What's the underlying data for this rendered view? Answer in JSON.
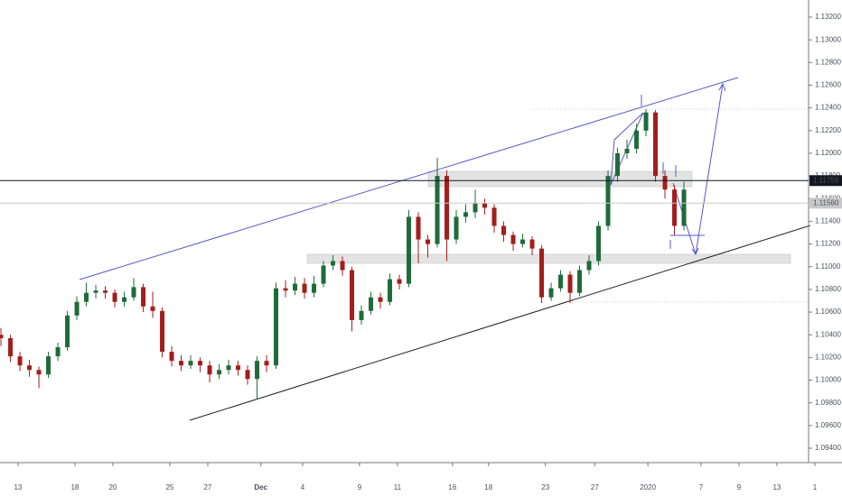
{
  "chart_data": {
    "type": "candlestick",
    "x": [
      -0.9,
      -0.4,
      0.1,
      0.6,
      1.1,
      1.6,
      2.1,
      2.6,
      3.1,
      3.6,
      4.1,
      4.6,
      5.1,
      5.6,
      6.1,
      6.6,
      7.1,
      7.6,
      8.1,
      8.6,
      9.1,
      9.6,
      10.1,
      10.6,
      11.1,
      11.6,
      12.1,
      12.6,
      13.1,
      13.6,
      14.1,
      14.6,
      15.1,
      15.6,
      16.1,
      16.6,
      17.1,
      17.6,
      18.1,
      18.6,
      19.1,
      19.6,
      20.1,
      20.6,
      21.1,
      21.6,
      22.1,
      22.6,
      23.1,
      23.6,
      24.1,
      24.6,
      25.1,
      25.6,
      26.1,
      26.6,
      27.1,
      27.6,
      28.1,
      28.6,
      29.1,
      29.6,
      30.1,
      30.6,
      31.1,
      31.6,
      32.1,
      32.6,
      33.1,
      33.6,
      34.1,
      34.6,
      35.1
    ],
    "open": [
      1.104,
      1.1037,
      1.1021,
      1.1013,
      1.1009,
      1.1005,
      1.1021,
      1.1029,
      1.1057,
      1.1069,
      1.1077,
      1.1079,
      1.1077,
      1.1069,
      1.1073,
      1.1082,
      1.1065,
      1.1061,
      1.1025,
      1.1017,
      1.1013,
      1.1017,
      1.1013,
      1.1005,
      1.1009,
      1.1013,
      1.1009,
      1.1001,
      1.1017,
      1.1013,
      1.1081,
      1.1079,
      1.1085,
      1.1077,
      1.1085,
      1.1101,
      1.1105,
      1.1097,
      1.1053,
      1.1061,
      1.1073,
      1.1069,
      1.1089,
      1.1085,
      1.1144,
      1.1124,
      1.112,
      1.118,
      1.1124,
      1.1144,
      1.1148,
      1.1156,
      1.1152,
      1.1136,
      1.1128,
      1.112,
      1.1124,
      1.1116,
      1.1073,
      1.1081,
      1.1093,
      1.1077,
      1.1097,
      1.1105,
      1.1136,
      1.118,
      1.12,
      1.1204,
      1.122,
      1.1236,
      1.118,
      1.1168,
      1.1136
    ],
    "high": [
      1.1046,
      1.104,
      1.1025,
      1.1018,
      1.1012,
      1.1025,
      1.1033,
      1.1061,
      1.1074,
      1.1086,
      1.1084,
      1.1083,
      1.108,
      1.1078,
      1.109,
      1.1085,
      1.1078,
      1.1064,
      1.103,
      1.1022,
      1.1022,
      1.102,
      1.1017,
      1.1014,
      1.1018,
      1.1017,
      1.1013,
      1.1021,
      1.1022,
      1.1086,
      1.1088,
      1.1091,
      1.109,
      1.1092,
      1.1105,
      1.111,
      1.1109,
      1.11,
      1.1066,
      1.1078,
      1.1077,
      1.1094,
      1.1093,
      1.115,
      1.1148,
      1.1128,
      1.1196,
      1.1185,
      1.115,
      1.1155,
      1.1168,
      1.116,
      1.1155,
      1.114,
      1.1131,
      1.1129,
      1.1127,
      1.1119,
      1.1086,
      1.1097,
      1.1096,
      1.1101,
      1.111,
      1.114,
      1.1185,
      1.1205,
      1.1212,
      1.1226,
      1.1239,
      1.1238,
      1.1185,
      1.1172,
      1.1175
    ],
    "low": [
      1.103,
      1.1016,
      1.1008,
      1.1003,
      1.0993,
      1.1002,
      1.1017,
      1.1026,
      1.1053,
      1.1065,
      1.1072,
      1.1072,
      1.1064,
      1.1065,
      1.107,
      1.106,
      1.1055,
      1.102,
      1.1012,
      1.1008,
      1.101,
      1.1007,
      1.0998,
      1.1001,
      1.1005,
      1.1004,
      1.0996,
      1.0983,
      1.1007,
      1.101,
      1.1073,
      1.1075,
      1.1072,
      1.1073,
      1.1082,
      1.1097,
      1.1092,
      1.1043,
      1.1049,
      1.1058,
      1.1063,
      1.1066,
      1.108,
      1.1082,
      1.1103,
      1.1108,
      1.1117,
      1.1105,
      1.112,
      1.1139,
      1.1143,
      1.1146,
      1.113,
      1.1122,
      1.1114,
      1.1117,
      1.111,
      1.1068,
      1.107,
      1.1078,
      1.1068,
      1.1074,
      1.1093,
      1.1101,
      1.1132,
      1.1175,
      1.1195,
      1.12,
      1.1215,
      1.1175,
      1.116,
      1.1128,
      1.1132
    ],
    "close": [
      1.1037,
      1.1021,
      1.1013,
      1.1009,
      1.1005,
      1.1021,
      1.1029,
      1.1057,
      1.1069,
      1.1077,
      1.1079,
      1.1077,
      1.1069,
      1.1073,
      1.1082,
      1.1065,
      1.1061,
      1.1025,
      1.1017,
      1.1013,
      1.1017,
      1.1013,
      1.1005,
      1.1009,
      1.1013,
      1.1009,
      1.1001,
      1.1017,
      1.1013,
      1.1081,
      1.1079,
      1.1085,
      1.1077,
      1.1085,
      1.1101,
      1.1105,
      1.1097,
      1.1053,
      1.1061,
      1.1073,
      1.1069,
      1.1089,
      1.1085,
      1.1144,
      1.1124,
      1.112,
      1.118,
      1.1124,
      1.1144,
      1.1148,
      1.1156,
      1.1152,
      1.1136,
      1.1128,
      1.112,
      1.1124,
      1.1116,
      1.1073,
      1.1081,
      1.1093,
      1.1077,
      1.1097,
      1.1105,
      1.1136,
      1.118,
      1.12,
      1.1204,
      1.122,
      1.1236,
      1.118,
      1.1168,
      1.1136,
      1.1168
    ],
    "up_color": "#1e6b3a",
    "down_color": "#a31d1d",
    "xlim": [
      -0.95,
      41.67
    ],
    "xticks": [
      {
        "value": 0,
        "label": "13"
      },
      {
        "value": 3,
        "label": "18"
      },
      {
        "value": 5,
        "label": "20"
      },
      {
        "value": 8,
        "label": "25"
      },
      {
        "value": 10,
        "label": "27"
      },
      {
        "value": 12.8,
        "label": "Dec"
      },
      {
        "value": 15,
        "label": "4"
      },
      {
        "value": 18,
        "label": "9"
      },
      {
        "value": 20,
        "label": "11"
      },
      {
        "value": 22.9,
        "label": "16"
      },
      {
        "value": 24.8,
        "label": "18"
      },
      {
        "value": 27.8,
        "label": "23"
      },
      {
        "value": 30.4,
        "label": "27"
      },
      {
        "value": 33.2,
        "label": "2020"
      },
      {
        "value": 36,
        "label": "7"
      },
      {
        "value": 38,
        "label": "9"
      },
      {
        "value": 40,
        "label": "13"
      },
      {
        "value": 42,
        "label": "1"
      }
    ],
    "ylim": [
      1.09273,
      1.13351
    ],
    "yticks": [
      {
        "value": 1.132,
        "label": "1.13200"
      },
      {
        "value": 1.13,
        "label": "1.13000"
      },
      {
        "value": 1.128,
        "label": "1.12800"
      },
      {
        "value": 1.126,
        "label": "1.12600"
      },
      {
        "value": 1.124,
        "label": "1.12400"
      },
      {
        "value": 1.122,
        "label": "1.12200"
      },
      {
        "value": 1.12,
        "label": "1.12000"
      },
      {
        "value": 1.118,
        "label": "1.11800"
      },
      {
        "value": 1.116,
        "label": "1.11600"
      },
      {
        "value": 1.114,
        "label": "1.11400"
      },
      {
        "value": 1.112,
        "label": "1.11200"
      },
      {
        "value": 1.11,
        "label": "1.11000"
      },
      {
        "value": 1.108,
        "label": "1.10800"
      },
      {
        "value": 1.106,
        "label": "1.10600"
      },
      {
        "value": 1.104,
        "label": "1.10400"
      },
      {
        "value": 1.102,
        "label": "1.10200"
      },
      {
        "value": 1.1,
        "label": "1.10000"
      },
      {
        "value": 1.098,
        "label": "1.09800"
      },
      {
        "value": 1.096,
        "label": "1.09600"
      },
      {
        "value": 1.094,
        "label": "1.09400"
      }
    ],
    "price_lines": [
      {
        "value": 1.11759,
        "label": "1.11759",
        "color": "#131722"
      },
      {
        "value": 1.1156,
        "label": "1.11560",
        "color": "#c8c8c8"
      }
    ]
  }
}
